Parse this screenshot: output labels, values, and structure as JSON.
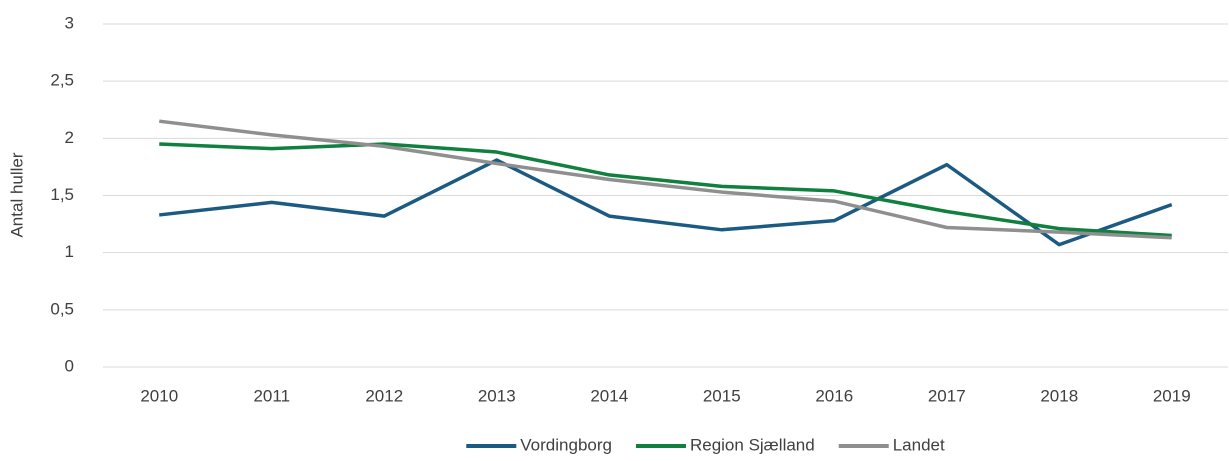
{
  "chart_data": {
    "type": "line",
    "y_label": "Antal huller",
    "categories": [
      "2010",
      "2011",
      "2012",
      "2013",
      "2014",
      "2015",
      "2016",
      "2017",
      "2018",
      "2019"
    ],
    "series": [
      {
        "name": "Vordingborg",
        "color": "#1a5a83",
        "values": [
          1.33,
          1.44,
          1.32,
          1.81,
          1.32,
          1.2,
          1.28,
          1.77,
          1.07,
          1.42
        ]
      },
      {
        "name": "Region Sjælland",
        "color": "#10803f",
        "values": [
          1.95,
          1.91,
          1.95,
          1.88,
          1.68,
          1.58,
          1.54,
          1.36,
          1.21,
          1.15
        ]
      },
      {
        "name": "Landet",
        "color": "#8f8f8f",
        "values": [
          2.15,
          2.03,
          1.93,
          1.78,
          1.64,
          1.53,
          1.45,
          1.22,
          1.18,
          1.13
        ]
      }
    ],
    "ylim": [
      0,
      3
    ],
    "yticks": [
      0,
      {
        "value": 0.5,
        "label": "0,5"
      },
      1,
      {
        "value": 1.5,
        "label": "1,5"
      },
      2,
      {
        "value": 2.5,
        "label": "2,5"
      },
      3
    ],
    "grid": true,
    "legend": "bottom"
  }
}
